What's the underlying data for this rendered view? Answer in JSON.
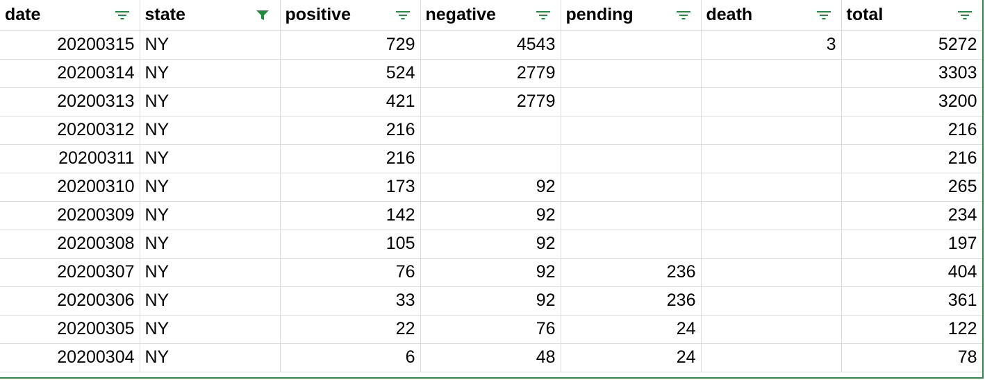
{
  "headers": [
    {
      "label": "date",
      "filter_active": false
    },
    {
      "label": "state",
      "filter_active": true
    },
    {
      "label": "positive",
      "filter_active": false
    },
    {
      "label": "negative",
      "filter_active": false
    },
    {
      "label": "pending",
      "filter_active": false
    },
    {
      "label": "death",
      "filter_active": false
    },
    {
      "label": "total",
      "filter_active": false
    }
  ],
  "rows": [
    [
      "20200315",
      "NY",
      "729",
      "4543",
      "",
      "3",
      "5272"
    ],
    [
      "20200314",
      "NY",
      "524",
      "2779",
      "",
      "",
      "3303"
    ],
    [
      "20200313",
      "NY",
      "421",
      "2779",
      "",
      "",
      "3200"
    ],
    [
      "20200312",
      "NY",
      "216",
      "",
      "",
      "",
      "216"
    ],
    [
      "20200311",
      "NY",
      "216",
      "",
      "",
      "",
      "216"
    ],
    [
      "20200310",
      "NY",
      "173",
      "92",
      "",
      "",
      "265"
    ],
    [
      "20200309",
      "NY",
      "142",
      "92",
      "",
      "",
      "234"
    ],
    [
      "20200308",
      "NY",
      "105",
      "92",
      "",
      "",
      "197"
    ],
    [
      "20200307",
      "NY",
      "76",
      "92",
      "236",
      "",
      "404"
    ],
    [
      "20200306",
      "NY",
      "33",
      "92",
      "236",
      "",
      "361"
    ],
    [
      "20200305",
      "NY",
      "22",
      "76",
      "24",
      "",
      "122"
    ],
    [
      "20200304",
      "NY",
      "6",
      "48",
      "24",
      "",
      "78"
    ]
  ],
  "colors": {
    "filter_icon": "#1e8c3a",
    "selection_border": "#2e8b45",
    "grid": "#dcdcdc"
  }
}
